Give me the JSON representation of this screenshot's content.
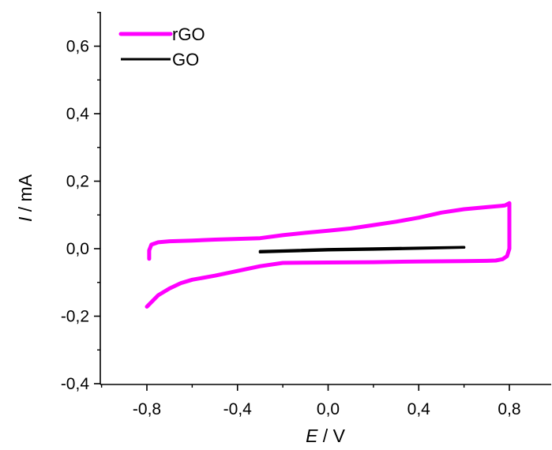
{
  "chart_data": {
    "type": "line",
    "title": "",
    "xlabel": {
      "symbol": "E",
      "unit": " / V"
    },
    "ylabel": {
      "symbol": "I",
      "unit": " / mA"
    },
    "xlim": [
      -1.0,
      1.0
    ],
    "ylim": [
      -0.4,
      0.7
    ],
    "xticks": [
      {
        "value": -0.8,
        "label": "-0,8"
      },
      {
        "value": -0.4,
        "label": "-0,4"
      },
      {
        "value": 0.0,
        "label": "0,0"
      },
      {
        "value": 0.4,
        "label": "0,4"
      },
      {
        "value": 0.8,
        "label": "0,8"
      }
    ],
    "yticks": [
      {
        "value": -0.4,
        "label": "-0,4"
      },
      {
        "value": -0.2,
        "label": "-0,2"
      },
      {
        "value": 0.0,
        "label": "0,0"
      },
      {
        "value": 0.2,
        "label": "0,2"
      },
      {
        "value": 0.4,
        "label": "0,4"
      },
      {
        "value": 0.6,
        "label": "0,6"
      }
    ],
    "legend_position": "top-left",
    "grid": false,
    "series": [
      {
        "name": "rGO",
        "color": "#ff00ff",
        "x": [
          -0.79,
          -0.79,
          -0.78,
          -0.75,
          -0.7,
          -0.6,
          -0.5,
          -0.4,
          -0.3,
          -0.2,
          -0.1,
          0.0,
          0.1,
          0.2,
          0.3,
          0.4,
          0.5,
          0.6,
          0.7,
          0.78,
          0.8,
          0.8,
          0.8,
          0.79,
          0.77,
          0.74,
          0.7,
          0.6,
          0.4,
          0.2,
          0.0,
          -0.2,
          -0.3,
          -0.4,
          -0.5,
          -0.6,
          -0.65,
          -0.7,
          -0.75,
          -0.8
        ],
        "y": [
          -0.03,
          -0.005,
          0.012,
          0.019,
          0.022,
          0.024,
          0.027,
          0.029,
          0.031,
          0.04,
          0.047,
          0.053,
          0.06,
          0.07,
          0.08,
          0.092,
          0.107,
          0.117,
          0.123,
          0.128,
          0.135,
          0.1,
          0.0,
          -0.022,
          -0.031,
          -0.035,
          -0.036,
          -0.037,
          -0.038,
          -0.04,
          -0.041,
          -0.042,
          -0.052,
          -0.066,
          -0.08,
          -0.092,
          -0.102,
          -0.118,
          -0.138,
          -0.172
        ]
      },
      {
        "name": "GO",
        "color": "#000000",
        "x": [
          -0.3,
          -0.2,
          0.0,
          0.2,
          0.4,
          0.6,
          0.4,
          0.2,
          0.0,
          -0.2,
          -0.3
        ],
        "y": [
          -0.008,
          -0.006,
          -0.002,
          0.0,
          0.002,
          0.004,
          0.001,
          -0.002,
          -0.004,
          -0.008,
          -0.01
        ]
      }
    ]
  }
}
